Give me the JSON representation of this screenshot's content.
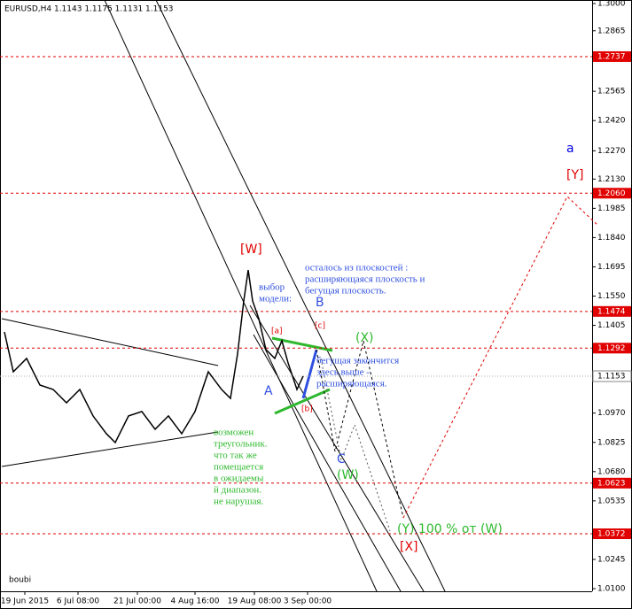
{
  "chart_data": {
    "type": "line",
    "title": "EURUSD,H4  1.1143 1.1175 1.1131 1.1153",
    "watermark": "boubi",
    "xlim": [
      0,
      668
    ],
    "ylim": [
      1.01,
      1.3
    ],
    "xticks": [
      {
        "value": 28,
        "label": "19 Jun 2015"
      },
      {
        "value": 88,
        "label": "6 Jul 08:00"
      },
      {
        "value": 155,
        "label": "21 Jul 00:00"
      },
      {
        "value": 220,
        "label": "4 Aug 16:00"
      },
      {
        "value": 287,
        "label": "19 Aug 08:00"
      },
      {
        "value": 347,
        "label": "3 Sep 00:00"
      }
    ],
    "yticks": [
      {
        "value": 1.3,
        "label": "1.3000"
      },
      {
        "value": 1.2865,
        "label": "1.2865"
      },
      {
        "value": 1.2565,
        "label": "1.2565"
      },
      {
        "value": 1.242,
        "label": "1.2420"
      },
      {
        "value": 1.227,
        "label": "1.2270"
      },
      {
        "value": 1.213,
        "label": "1.2130"
      },
      {
        "value": 1.1985,
        "label": "1.1985"
      },
      {
        "value": 1.184,
        "label": "1.1840"
      },
      {
        "value": 1.1695,
        "label": "1.1695"
      },
      {
        "value": 1.155,
        "label": "1.1550"
      },
      {
        "value": 1.1405,
        "label": "1.1405"
      },
      {
        "value": 1.097,
        "label": "1.0970"
      },
      {
        "value": 1.0825,
        "label": "1.0825"
      },
      {
        "value": 1.068,
        "label": "1.0680"
      },
      {
        "value": 1.0535,
        "label": "1.0535"
      },
      {
        "value": 1.0245,
        "label": "1.0245"
      },
      {
        "value": 1.01,
        "label": "1.0100"
      }
    ],
    "levels": [
      {
        "value": 1.2737,
        "label": "1.2737"
      },
      {
        "value": 1.206,
        "label": "1.2060"
      },
      {
        "value": 1.1474,
        "label": "1.1474"
      },
      {
        "value": 1.1292,
        "label": "1.1292"
      },
      {
        "value": 1.0623,
        "label": "1.0623"
      },
      {
        "value": 1.0372,
        "label": "1.0372"
      }
    ],
    "level_color": "#e00000",
    "current_price": {
      "value": 1.1153,
      "label": "1.1153"
    },
    "series": [
      {
        "name": "EURUSD",
        "color": "#000000",
        "x": [
          5,
          15,
          30,
          45,
          60,
          75,
          90,
          105,
          120,
          130,
          145,
          160,
          175,
          190,
          205,
          220,
          235,
          250,
          260,
          268,
          275,
          280,
          285,
          292,
          300,
          310,
          318,
          325,
          335,
          342
        ],
        "values": [
          1.1372,
          1.1175,
          1.1241,
          1.1109,
          1.1087,
          1.1021,
          1.1087,
          1.0956,
          1.0868,
          1.0824,
          1.0956,
          1.0978,
          1.089,
          1.0956,
          1.0868,
          1.0978,
          1.1175,
          1.1087,
          1.1043,
          1.1263,
          1.1526,
          1.1679,
          1.1526,
          1.1438,
          1.1285,
          1.1241,
          1.1329,
          1.1219,
          1.1087,
          1.1153
        ]
      }
    ],
    "annotations": {
      "W": "[W]",
      "B": "B",
      "a_small": "[a]",
      "c_small": "[c]",
      "b_small": "[b]",
      "A": "A",
      "X_paren": "(X)",
      "C": "C",
      "W_paren": "(W)",
      "Y_paren": "(Y)   100 % от (W)",
      "X_bracket": "[X]",
      "a_big": "a",
      "Y_bracket": "[Y]",
      "note_planes": [
        "осталось из плоскостей :",
        "расширяющаяся плоскость и",
        "бегущая плоскость."
      ],
      "note_model": [
        "выбор",
        "модели:"
      ],
      "note_running": [
        "бегущая закончится",
        "здесь.выше -",
        "расширяющаяся."
      ],
      "note_triangle": [
        "возможен",
        "треугольник.",
        "что так же",
        "помещается",
        "в ожидаемы",
        "й диапазон.",
        "не нарушая."
      ]
    }
  }
}
